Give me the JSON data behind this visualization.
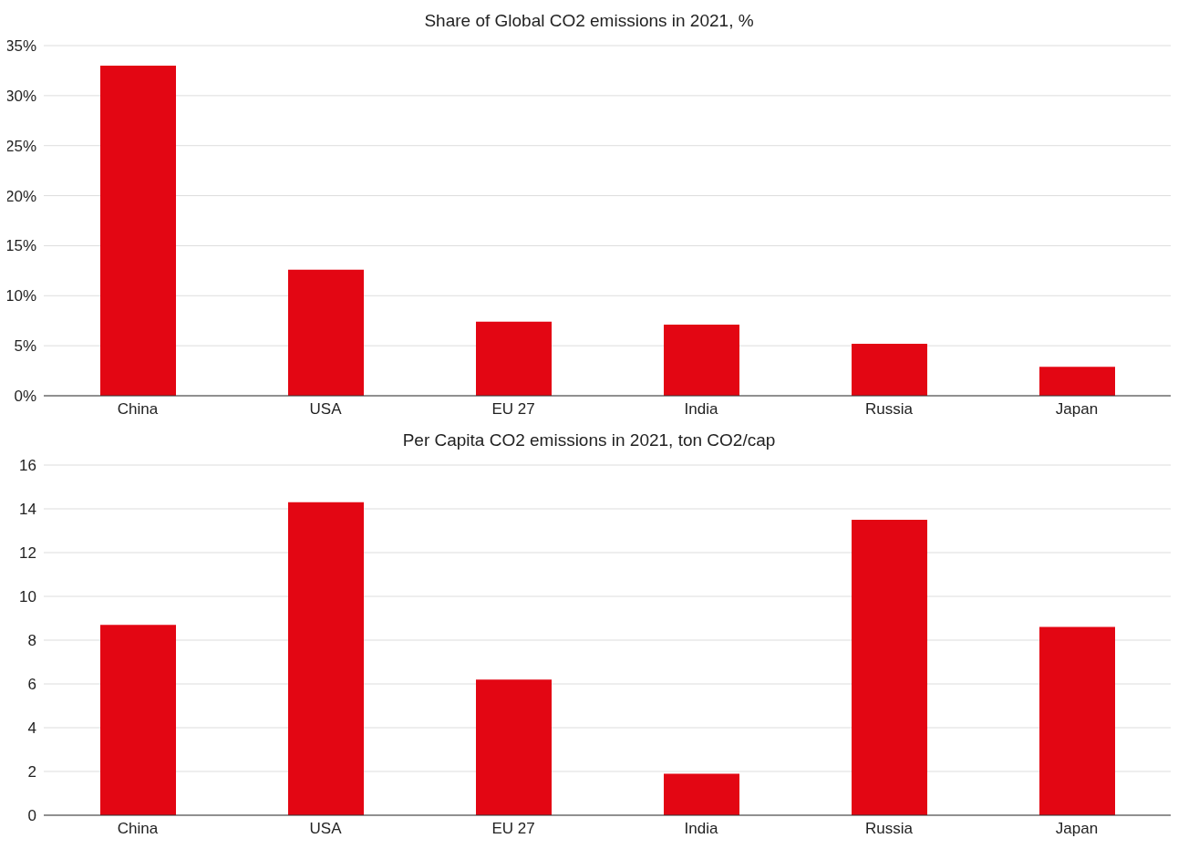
{
  "chart_data": [
    {
      "type": "bar",
      "title": "Share of Global CO2 emissions in 2021, %",
      "categories": [
        "China",
        "USA",
        "EU 27",
        "India",
        "Russia",
        "Japan"
      ],
      "values": [
        33.0,
        12.6,
        7.4,
        7.1,
        5.2,
        2.9
      ],
      "color": "#e30613",
      "ylim": [
        0,
        35
      ],
      "yticks": [
        {
          "value": 0,
          "label": "0%"
        },
        {
          "value": 5,
          "label": "5%"
        },
        {
          "value": 10,
          "label": "10%"
        },
        {
          "value": 15,
          "label": "15%"
        },
        {
          "value": 20,
          "label": "20%"
        },
        {
          "value": 25,
          "label": "25%"
        },
        {
          "value": 30,
          "label": "30%"
        },
        {
          "value": 35,
          "label": "35%"
        }
      ],
      "grid": "y"
    },
    {
      "type": "bar",
      "title": "Per Capita CO2 emissions in 2021, ton CO2/cap",
      "categories": [
        "China",
        "USA",
        "EU 27",
        "India",
        "Russia",
        "Japan"
      ],
      "values": [
        8.7,
        14.3,
        6.2,
        1.9,
        13.5,
        8.6
      ],
      "color": "#e30613",
      "ylim": [
        0,
        16
      ],
      "yticks": [
        0,
        2,
        4,
        6,
        8,
        10,
        12,
        14,
        16
      ],
      "grid": "y"
    }
  ]
}
